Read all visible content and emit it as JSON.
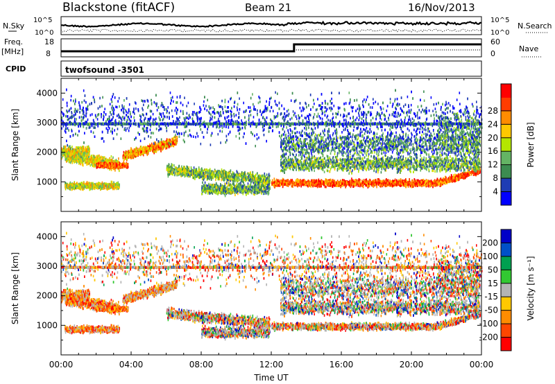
{
  "header": {
    "station": "Blackstone (fitACF)",
    "beam": "Beam 21",
    "date": "16/Nov/2013"
  },
  "top_panels": {
    "nsky_label": "N.Sky",
    "nsearch_label": "N.Search",
    "noise_ticks": [
      "10^5",
      "10^0"
    ],
    "freq_label": "Freq.",
    "freq_unit": "[MHz]",
    "freq_ticks": [
      "18",
      "8"
    ],
    "nave_label": "Nave",
    "nave_ticks": [
      "60",
      "0"
    ],
    "cpid_label": "CPID",
    "cpid_value": "twofsound -3501"
  },
  "colors": {
    "power": [
      "#0000ff",
      "#1e3cb4",
      "#3c8c50",
      "#64b464",
      "#b4e600",
      "#ffc800",
      "#ff8c00",
      "#ff3c00",
      "#ff0000"
    ],
    "velocity": [
      "#0000c8",
      "#0050c8",
      "#00a050",
      "#32c832",
      "#b4b4b4",
      "#ffc800",
      "#ff8c00",
      "#ff4600",
      "#ff0000"
    ]
  },
  "chart_data": [
    {
      "type": "heatmap",
      "name": "power",
      "xlabel": "Time UT",
      "ylabel": "Slant Range [km]",
      "xlim": [
        0,
        24
      ],
      "ylim": [
        0,
        4500
      ],
      "x_ticks": [
        "00:00",
        "04:00",
        "08:00",
        "12:00",
        "16:00",
        "20:00",
        "00:00"
      ],
      "y_ticks": [
        1000,
        2000,
        3000,
        4000
      ],
      "colorbar_label": "Power [dB]",
      "colorbar_ticks": [
        4,
        8,
        12,
        16,
        20,
        24,
        28
      ],
      "colorbar_range": [
        0,
        30
      ]
    },
    {
      "type": "heatmap",
      "name": "velocity",
      "xlabel": "Time UT",
      "ylabel": "Slant Range [km]",
      "xlim": [
        0,
        24
      ],
      "ylim": [
        0,
        4500
      ],
      "x_ticks": [
        "00:00",
        "04:00",
        "08:00",
        "12:00",
        "16:00",
        "20:00",
        "00:00"
      ],
      "y_ticks": [
        1000,
        2000,
        3000,
        4000
      ],
      "colorbar_label": "Velocity [m s⁻¹]",
      "colorbar_ticks": [
        "200",
        "100",
        "50",
        "15",
        "-15",
        "-50",
        "-100",
        "-200"
      ]
    }
  ]
}
